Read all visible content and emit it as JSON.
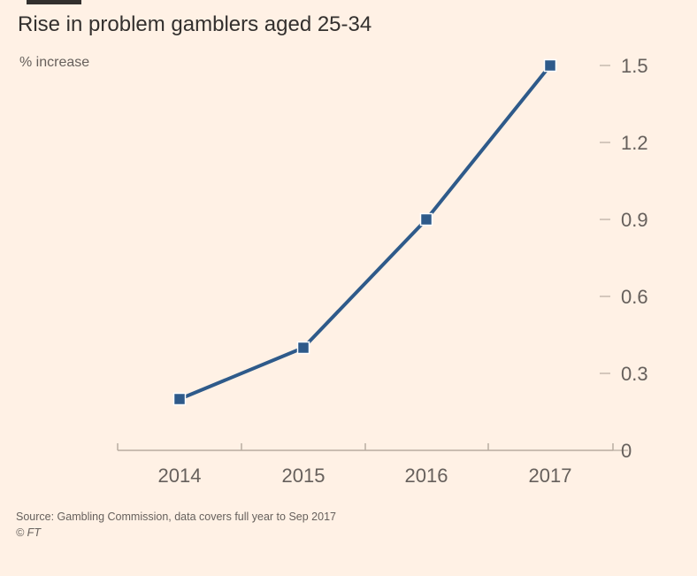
{
  "header": {
    "title": "Rise in problem gamblers aged 25-34",
    "subtitle": "% increase"
  },
  "footer": {
    "source": "Source: Gambling Commission, data covers full year to Sep 2017",
    "copyright": "© FT"
  },
  "colors": {
    "background": "#fff1e5",
    "line": "#2e5a8a",
    "axis": "#b8aca0",
    "tick_text": "#66605c"
  },
  "chart_data": {
    "type": "line",
    "title": "Rise in problem gamblers aged 25-34",
    "ylabel": "% increase",
    "xlabel": "",
    "categories": [
      "2014",
      "2015",
      "2016",
      "2017"
    ],
    "series": [
      {
        "values": [
          0.2,
          0.4,
          0.9,
          1.5
        ]
      }
    ],
    "ylim": [
      0,
      1.5
    ],
    "yticks": [
      "0",
      "0.3",
      "0.6",
      "0.9",
      "1.2",
      "1.5"
    ],
    "grid": false,
    "yaxis_side": "right",
    "markers": "square"
  }
}
